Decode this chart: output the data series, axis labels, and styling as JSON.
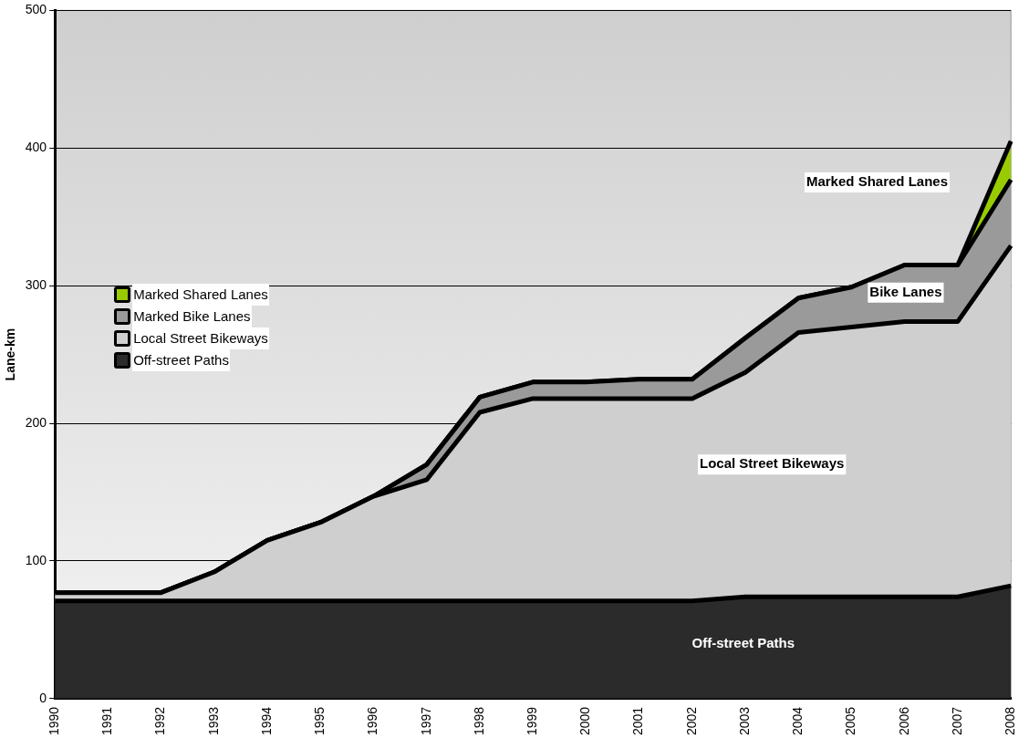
{
  "chart_data": {
    "type": "area",
    "stacked": true,
    "ylabel": "Lane-km",
    "categories": [
      "1990",
      "1991",
      "1992",
      "1993",
      "1994",
      "1995",
      "1996",
      "1997",
      "1998",
      "1999",
      "2000",
      "2001",
      "2002",
      "2003",
      "2004",
      "2005",
      "2006",
      "2007",
      "2008"
    ],
    "series": [
      {
        "name": "Off-street Paths",
        "color": "#2b2b2b",
        "values": [
          71,
          71,
          71,
          71,
          71,
          71,
          71,
          71,
          71,
          71,
          71,
          71,
          71,
          74,
          74,
          74,
          74,
          74,
          82
        ]
      },
      {
        "name": "Local Street Bikeways",
        "color": "#cfcfcf",
        "values": [
          6,
          6,
          6,
          21,
          44,
          57,
          76,
          88,
          137,
          147,
          147,
          147,
          147,
          163,
          192,
          196,
          200,
          200,
          247
        ]
      },
      {
        "name": "Marked Bike Lanes",
        "color": "#9a9a9a",
        "values": [
          0,
          0,
          0,
          0,
          0,
          0,
          0,
          11,
          11,
          12,
          12,
          14,
          14,
          25,
          25,
          29,
          41,
          41,
          48
        ]
      },
      {
        "name": "Marked Shared Lanes",
        "color": "#99cc00",
        "values": [
          0,
          0,
          0,
          0,
          0,
          0,
          0,
          0,
          0,
          0,
          0,
          0,
          0,
          0,
          0,
          0,
          0,
          0,
          28
        ]
      }
    ],
    "ylim": [
      0,
      500
    ],
    "yticks": [
      0,
      100,
      200,
      300,
      400,
      500
    ],
    "grid": "y",
    "legend": "left",
    "annotations": [
      "Marked Shared Lanes",
      "Bike Lanes",
      "Local Street Bikeways",
      "Off-street Paths"
    ]
  }
}
